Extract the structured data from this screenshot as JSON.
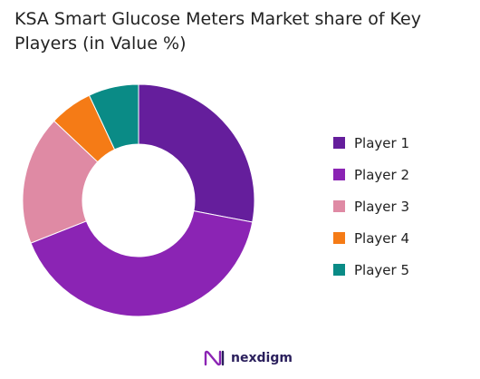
{
  "chart_data": {
    "type": "pie",
    "variant": "donut",
    "title": "KSA Smart Glucose Meters Market share of Key Players (in Value %)",
    "categories": [
      "Player 1",
      "Player 2",
      "Player 3",
      "Player 4",
      "Player 5"
    ],
    "values": [
      28,
      41,
      18,
      6,
      7
    ],
    "colors": [
      "#651e9c",
      "#8b24b4",
      "#df8aa4",
      "#f57b16",
      "#0a8b86"
    ],
    "legend_position": "right"
  },
  "brand": {
    "name": "nexdigm",
    "logo_color": "#2a1f5c"
  }
}
